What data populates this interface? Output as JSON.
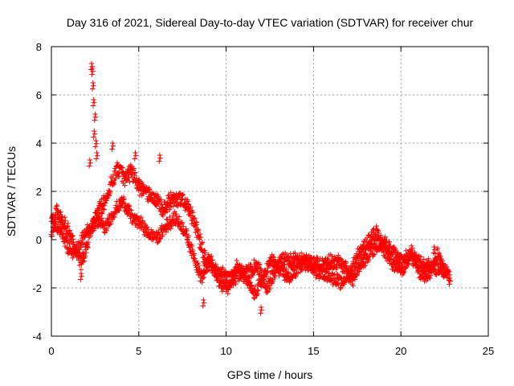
{
  "chart_data": {
    "type": "scatter",
    "title": "Day 316 of 2021, Sidereal Day-to-day VTEC variation (SDTVAR) for receiver chur",
    "xlabel": "GPS time / hours",
    "ylabel": "SDTVAR / TECUs",
    "xlim": [
      0,
      25
    ],
    "ylim": [
      -4,
      8
    ],
    "xticks": [
      0,
      5,
      10,
      15,
      20,
      25
    ],
    "yticks": [
      -4,
      -2,
      0,
      2,
      4,
      6,
      8
    ],
    "xtick_labels": [
      "0",
      "5",
      "10",
      "15",
      "20",
      "25"
    ],
    "ytick_labels": [
      "-4",
      "-2",
      "0",
      "2",
      "4",
      "6",
      "8"
    ],
    "grid": true,
    "marker": "+",
    "colors": {
      "points": "#ff0000",
      "axis": "#000000",
      "grid": "#a0a0a0"
    },
    "series": [
      {
        "name": "SDTVAR",
        "trend": [
          [
            0.0,
            0.3
          ],
          [
            0.3,
            1.2
          ],
          [
            0.8,
            0.6
          ],
          [
            1.3,
            -0.3
          ],
          [
            1.7,
            -0.9
          ],
          [
            2.0,
            -0.3
          ],
          [
            2.3,
            0.6
          ],
          [
            2.6,
            1.1
          ],
          [
            3.0,
            1.5
          ],
          [
            3.4,
            2.3
          ],
          [
            3.8,
            3.0
          ],
          [
            4.2,
            2.6
          ],
          [
            4.6,
            2.8
          ],
          [
            5.0,
            2.2
          ],
          [
            5.5,
            1.9
          ],
          [
            6.0,
            1.6
          ],
          [
            6.4,
            1.2
          ],
          [
            6.8,
            1.6
          ],
          [
            7.3,
            1.7
          ],
          [
            7.8,
            1.4
          ],
          [
            8.3,
            0.5
          ],
          [
            8.7,
            -0.6
          ],
          [
            9.2,
            -1.2
          ],
          [
            9.7,
            -1.4
          ],
          [
            10.2,
            -1.7
          ],
          [
            10.8,
            -1.4
          ],
          [
            11.3,
            -1.3
          ],
          [
            11.8,
            -1.1
          ],
          [
            12.3,
            -2.1
          ],
          [
            12.8,
            -1.2
          ],
          [
            13.3,
            -0.9
          ],
          [
            13.8,
            -0.8
          ],
          [
            14.3,
            -0.9
          ],
          [
            14.8,
            -1.0
          ],
          [
            15.3,
            -1.1
          ],
          [
            15.8,
            -1.0
          ],
          [
            16.3,
            -0.9
          ],
          [
            16.8,
            -1.2
          ],
          [
            17.2,
            -1.7
          ],
          [
            17.6,
            -1.1
          ],
          [
            18.1,
            -0.6
          ],
          [
            18.6,
            -0.2
          ],
          [
            19.1,
            -0.2
          ],
          [
            19.6,
            -0.6
          ],
          [
            20.0,
            -0.9
          ],
          [
            20.5,
            -0.7
          ],
          [
            21.0,
            -0.9
          ],
          [
            21.5,
            -1.1
          ],
          [
            22.0,
            -1.2
          ],
          [
            22.4,
            -1.1
          ],
          [
            22.8,
            -1.4
          ]
        ],
        "loops": [
          [
            0.0,
            0.9
          ],
          [
            0.6,
            0.2
          ],
          [
            1.1,
            -0.6
          ],
          [
            1.6,
            -0.2
          ],
          [
            2.1,
            0.4
          ],
          [
            2.6,
            0.8
          ],
          [
            3.1,
            0.5
          ],
          [
            3.6,
            1.2
          ],
          [
            4.1,
            1.6
          ],
          [
            4.6,
            0.9
          ],
          [
            5.1,
            0.7
          ],
          [
            5.6,
            0.2
          ],
          [
            6.1,
            0.1
          ],
          [
            6.6,
            0.6
          ],
          [
            7.1,
            0.9
          ],
          [
            7.6,
            0.4
          ],
          [
            8.1,
            -0.6
          ],
          [
            8.6,
            -1.6
          ],
          [
            9.1,
            -0.8
          ],
          [
            9.6,
            -1.8
          ],
          [
            10.1,
            -2.0
          ],
          [
            10.6,
            -1.1
          ],
          [
            11.1,
            -1.6
          ],
          [
            11.6,
            -2.3
          ],
          [
            12.1,
            -1.6
          ],
          [
            12.6,
            -0.8
          ],
          [
            13.1,
            -1.3
          ],
          [
            13.6,
            -1.6
          ],
          [
            14.1,
            -1.2
          ],
          [
            14.6,
            -0.8
          ],
          [
            15.1,
            -1.3
          ],
          [
            15.6,
            -1.4
          ],
          [
            16.1,
            -1.6
          ],
          [
            16.6,
            -1.8
          ],
          [
            17.1,
            -1.3
          ],
          [
            17.6,
            -0.5
          ],
          [
            18.1,
            -0.1
          ],
          [
            18.6,
            0.3
          ],
          [
            19.1,
            -0.5
          ],
          [
            19.6,
            -1.1
          ],
          [
            20.1,
            -1.3
          ],
          [
            20.6,
            -0.5
          ],
          [
            21.1,
            -1.4
          ],
          [
            21.6,
            -1.5
          ],
          [
            22.1,
            -0.6
          ],
          [
            22.6,
            -1.6
          ]
        ],
        "spikes": [
          [
            2.3,
            7.3
          ],
          [
            2.35,
            7.1
          ],
          [
            2.38,
            6.5
          ],
          [
            2.42,
            5.8
          ],
          [
            2.5,
            5.2
          ],
          [
            2.45,
            4.5
          ],
          [
            2.55,
            4.1
          ],
          [
            2.6,
            3.6
          ],
          [
            2.2,
            3.3
          ],
          [
            3.5,
            4.0
          ],
          [
            4.8,
            3.6
          ],
          [
            6.2,
            3.5
          ],
          [
            8.7,
            -2.5
          ],
          [
            12.0,
            -2.8
          ],
          [
            1.7,
            -1.4
          ],
          [
            21.9,
            -0.3
          ],
          [
            22.8,
            -1.6
          ]
        ],
        "noise": 0.35
      }
    ]
  }
}
